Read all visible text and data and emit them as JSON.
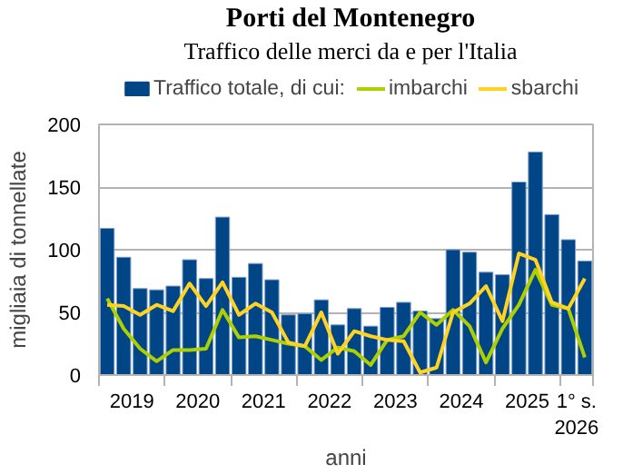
{
  "chart_data": {
    "type": "bar",
    "title": "Porti del Montenegro",
    "subtitle": "Traffico delle merci da e per l'Italia",
    "xlabel": "anni",
    "ylabel": "migliaia di tonnellate",
    "x": [
      2019.125,
      2019.375,
      2019.625,
      2019.875,
      2020.125,
      2020.375,
      2020.625,
      2020.875,
      2021.125,
      2021.375,
      2021.625,
      2021.875,
      2022.125,
      2022.375,
      2022.625,
      2022.875,
      2023.125,
      2023.375,
      2023.625,
      2023.875,
      2024.125,
      2024.375,
      2024.625,
      2024.875,
      2025.125,
      2025.375,
      2025.625,
      2025.875,
      2026.125,
      2026.375
    ],
    "series": [
      {
        "name": "Traffico totale, di cui:",
        "color": "#004586",
        "values": [
          117,
          94,
          69,
          68,
          71,
          92,
          77,
          126,
          78,
          89,
          76,
          48,
          49,
          60,
          40,
          53,
          39,
          54,
          58,
          51,
          45,
          100,
          98,
          82,
          80,
          154,
          178,
          128,
          108,
          91
        ]
      },
      {
        "name": "imbarchi",
        "type": "line",
        "color": "#aecf00",
        "values": [
          61,
          37,
          21,
          11,
          20,
          20,
          21,
          52,
          30,
          31,
          28,
          25,
          23,
          12,
          22,
          19,
          8,
          28,
          31,
          50,
          40,
          52,
          39,
          10,
          37,
          56,
          84,
          56,
          53,
          14
        ]
      },
      {
        "name": "sbarchi",
        "type": "line",
        "color": "#ffd320",
        "values": [
          56,
          55,
          48,
          56,
          51,
          73,
          55,
          74,
          48,
          57,
          50,
          26,
          23,
          50,
          17,
          35,
          31,
          28,
          27,
          2,
          6,
          50,
          57,
          71,
          43,
          97,
          92,
          58,
          53,
          77
        ]
      }
    ],
    "xlim": [
      2019,
      2026.5
    ],
    "ylim": [
      0,
      200
    ],
    "xticks": [
      {
        "value": 2019,
        "label": null
      },
      {
        "value": 2019.5,
        "label": "2019"
      },
      {
        "value": 2020,
        "label": null
      },
      {
        "value": 2020.5,
        "label": "2020"
      },
      {
        "value": 2021,
        "label": null
      },
      {
        "value": 2021.5,
        "label": "2021"
      },
      {
        "value": 2022,
        "label": null
      },
      {
        "value": 2022.5,
        "label": "2022"
      },
      {
        "value": 2023,
        "label": null
      },
      {
        "value": 2023.5,
        "label": "2023"
      },
      {
        "value": 2024,
        "label": null
      },
      {
        "value": 2024.5,
        "label": "2024"
      },
      {
        "value": 2025,
        "label": null
      },
      {
        "value": 2025.5,
        "label": "2025"
      },
      {
        "value": 2026,
        "label": null
      },
      {
        "value": 2026.25,
        "label": "1° s. 2026"
      },
      {
        "value": 2026.5,
        "label": null
      }
    ],
    "yticks": [
      0,
      50,
      100,
      150,
      200
    ],
    "grid": "y",
    "legend": "top",
    "marker": "none",
    "line_style": "solid"
  }
}
